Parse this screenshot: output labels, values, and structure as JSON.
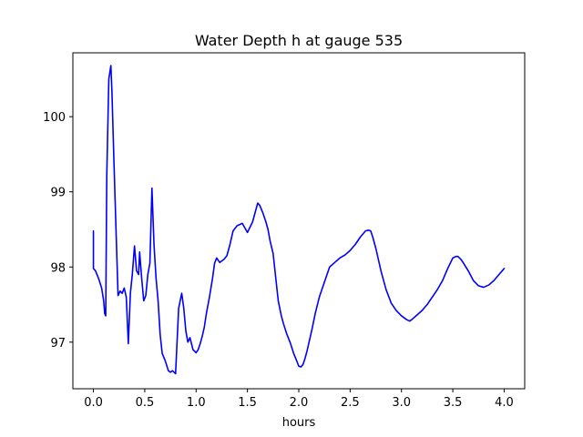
{
  "chart_data": {
    "type": "line",
    "title": "Water Depth h at gauge 535",
    "xlabel": "hours",
    "ylabel": "",
    "xlim": [
      -0.2,
      4.2
    ],
    "ylim": [
      96.38,
      100.85
    ],
    "xticks": [
      0.0,
      0.5,
      1.0,
      1.5,
      2.0,
      2.5,
      3.0,
      3.5,
      4.0
    ],
    "xtick_labels": [
      "0.0",
      "0.5",
      "1.0",
      "1.5",
      "2.0",
      "2.5",
      "3.0",
      "3.5",
      "4.0"
    ],
    "yticks": [
      97,
      98,
      99,
      100
    ],
    "ytick_labels": [
      "97",
      "98",
      "99",
      "100"
    ],
    "grid": false,
    "series": [
      {
        "name": "",
        "color": "#0000ff",
        "x": [
          0.0,
          0.0,
          0.02,
          0.05,
          0.08,
          0.1,
          0.11,
          0.12,
          0.13,
          0.15,
          0.17,
          0.18,
          0.2,
          0.22,
          0.24,
          0.26,
          0.28,
          0.3,
          0.32,
          0.34,
          0.36,
          0.38,
          0.4,
          0.42,
          0.44,
          0.45,
          0.47,
          0.49,
          0.51,
          0.53,
          0.55,
          0.57,
          0.59,
          0.61,
          0.63,
          0.65,
          0.67,
          0.7,
          0.73,
          0.75,
          0.77,
          0.8,
          0.83,
          0.86,
          0.88,
          0.9,
          0.92,
          0.94,
          0.97,
          1.0,
          1.02,
          1.04,
          1.06,
          1.08,
          1.1,
          1.13,
          1.16,
          1.18,
          1.2,
          1.23,
          1.25,
          1.27,
          1.3,
          1.33,
          1.36,
          1.4,
          1.45,
          1.5,
          1.55,
          1.58,
          1.6,
          1.62,
          1.65,
          1.68,
          1.7,
          1.72,
          1.75,
          1.78,
          1.8,
          1.83,
          1.85,
          1.88,
          1.92,
          1.95,
          1.98,
          2.0,
          2.02,
          2.04,
          2.06,
          2.08,
          2.1,
          2.13,
          2.16,
          2.2,
          2.25,
          2.3,
          2.35,
          2.4,
          2.45,
          2.5,
          2.55,
          2.6,
          2.65,
          2.68,
          2.7,
          2.72,
          2.75,
          2.8,
          2.85,
          2.9,
          2.95,
          3.0,
          3.05,
          3.08,
          3.1,
          3.15,
          3.2,
          3.25,
          3.3,
          3.35,
          3.4,
          3.45,
          3.5,
          3.53,
          3.55,
          3.58,
          3.6,
          3.65,
          3.7,
          3.75,
          3.8,
          3.85,
          3.9,
          3.95,
          4.0
        ],
        "y": [
          98.48,
          97.98,
          97.95,
          97.85,
          97.72,
          97.55,
          97.38,
          97.35,
          99.2,
          100.5,
          100.68,
          100.35,
          99.4,
          98.5,
          97.62,
          97.68,
          97.65,
          97.72,
          97.6,
          96.98,
          97.65,
          97.92,
          98.28,
          97.95,
          97.9,
          98.2,
          97.85,
          97.55,
          97.62,
          97.9,
          98.05,
          99.05,
          98.3,
          97.85,
          97.55,
          97.1,
          96.85,
          96.75,
          96.62,
          96.6,
          96.62,
          96.58,
          97.45,
          97.65,
          97.45,
          97.15,
          97.0,
          97.06,
          96.9,
          96.86,
          96.9,
          96.98,
          97.08,
          97.2,
          97.38,
          97.6,
          97.85,
          98.05,
          98.12,
          98.06,
          98.08,
          98.1,
          98.15,
          98.3,
          98.48,
          98.55,
          98.58,
          98.46,
          98.6,
          98.75,
          98.85,
          98.82,
          98.72,
          98.6,
          98.5,
          98.35,
          98.18,
          97.8,
          97.55,
          97.35,
          97.25,
          97.12,
          96.98,
          96.85,
          96.75,
          96.68,
          96.67,
          96.7,
          96.78,
          96.88,
          97.0,
          97.18,
          97.38,
          97.6,
          97.8,
          98.0,
          98.06,
          98.12,
          98.16,
          98.22,
          98.3,
          98.4,
          98.48,
          98.49,
          98.48,
          98.4,
          98.25,
          97.95,
          97.7,
          97.52,
          97.42,
          97.35,
          97.3,
          97.28,
          97.3,
          97.36,
          97.42,
          97.5,
          97.6,
          97.7,
          97.82,
          97.98,
          98.12,
          98.14,
          98.14,
          98.1,
          98.06,
          97.95,
          97.82,
          97.75,
          97.73,
          97.76,
          97.82,
          97.9,
          97.98
        ]
      }
    ]
  }
}
